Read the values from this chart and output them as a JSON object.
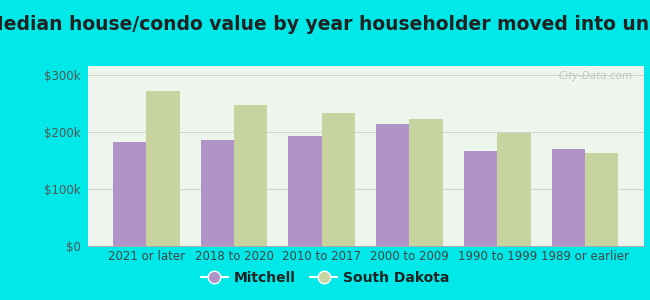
{
  "title": "Median house/condo value by year householder moved into unit",
  "categories": [
    "2021 or later",
    "2018 to 2020",
    "2010 to 2017",
    "2000 to 2009",
    "1990 to 1999",
    "1989 or earlier"
  ],
  "mitchell_values": [
    182000,
    185000,
    192000,
    213000,
    167000,
    170000
  ],
  "sd_values": [
    271000,
    247000,
    232000,
    222000,
    197000,
    162000
  ],
  "mitchell_color": "#b094c8",
  "sd_color": "#c8d4a0",
  "background_outer": "#00e8e8",
  "background_inner": "#eef5ec",
  "yticks": [
    0,
    100000,
    200000,
    300000
  ],
  "ylim": [
    0,
    315000
  ],
  "bar_width": 0.38,
  "legend_mitchell": "Mitchell",
  "legend_sd": "South Dakota",
  "watermark": "City-Data.com",
  "title_fontsize": 13.5,
  "tick_fontsize": 8.5,
  "legend_fontsize": 10
}
